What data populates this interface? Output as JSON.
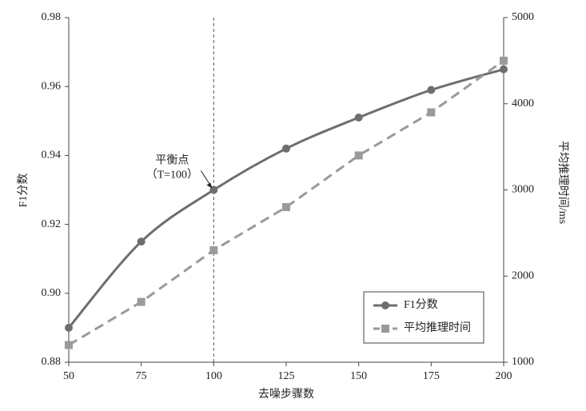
{
  "chart_data": {
    "type": "line",
    "x_label": "去噪步骤数",
    "y_label": "F1分数",
    "y2_label": "平均推理时间/ms",
    "x": [
      50,
      75,
      100,
      125,
      150,
      175,
      200
    ],
    "xlim": [
      50,
      200
    ],
    "xticks": [
      50,
      75,
      100,
      125,
      150,
      175,
      200
    ],
    "ylim": [
      0.88,
      0.98
    ],
    "yticks": [
      0.88,
      {
        "value": 0.9,
        "label": "0.90"
      },
      0.92,
      0.94,
      0.96,
      0.98
    ],
    "y2lim": [
      1000,
      5000
    ],
    "y2ticks": [
      1000,
      2000,
      3000,
      4000,
      5000
    ],
    "series": [
      {
        "name": "F1分数",
        "color": "#6e6e6e",
        "values": [
          0.89,
          0.915,
          0.93,
          0.942,
          0.951,
          0.959,
          0.965
        ],
        "marker": "circle",
        "dash": false,
        "smooth": true
      },
      {
        "name": "平均推理时间",
        "color": "#9a9a9a",
        "values": [
          1200,
          1700,
          2300,
          2800,
          3400,
          3900,
          4500
        ],
        "axis": "y2",
        "marker": "square",
        "dash": true,
        "smooth": false
      }
    ],
    "reference_line": {
      "x": 100
    },
    "annotation": {
      "lines": [
        "平衡点",
        "（T=100）"
      ]
    },
    "legend": "lower right",
    "grid": false
  }
}
